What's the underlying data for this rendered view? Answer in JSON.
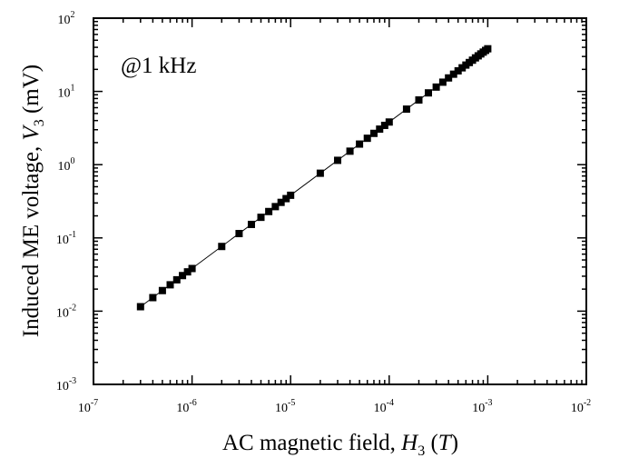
{
  "chart_data": {
    "type": "scatter",
    "annotation": "@1 kHz",
    "xlabel": "AC magnetic field, H3 (T)",
    "ylabel": "Induced ME voltage, V3 (mV)",
    "xscale": "log",
    "yscale": "log",
    "xlim": [
      1e-07,
      0.01
    ],
    "ylim": [
      0.001,
      100
    ],
    "x_ticks": [
      "10^-7",
      "10^-6",
      "10^-5",
      "10^-4",
      "10^-3",
      "10^-2"
    ],
    "y_ticks": [
      "10^-3",
      "10^-2",
      "10^-1",
      "10^0",
      "10^1",
      "10^2"
    ],
    "grid": false,
    "legend": "none",
    "marker": "square",
    "fit_line": true,
    "series": [
      {
        "x": [
          3e-07,
          4e-07,
          5e-07,
          6e-07,
          7e-07,
          8e-07,
          9e-07,
          1e-06,
          2e-06,
          3e-06,
          4e-06,
          5e-06,
          6e-06,
          7e-06,
          8e-06,
          9e-06,
          1e-05,
          2e-05,
          3e-05,
          4e-05,
          5e-05,
          6e-05,
          7e-05,
          8e-05,
          9e-05,
          0.0001,
          0.00015,
          0.0002,
          0.00025,
          0.0003,
          0.00035,
          0.0004,
          0.00045,
          0.0005,
          0.00055,
          0.0006,
          0.00065,
          0.0007,
          0.00075,
          0.0008,
          0.00085,
          0.0009,
          0.00095,
          0.001
        ],
        "y": [
          0.0115,
          0.0153,
          0.0191,
          0.0229,
          0.0268,
          0.0306,
          0.0344,
          0.0382,
          0.0764,
          0.1146,
          0.1528,
          0.191,
          0.2292,
          0.2674,
          0.3056,
          0.3438,
          0.382,
          0.764,
          1.146,
          1.528,
          1.91,
          2.292,
          2.674,
          3.056,
          3.438,
          3.82,
          5.73,
          7.64,
          9.55,
          11.46,
          13.37,
          15.28,
          17.19,
          19.1,
          21.0,
          22.9,
          24.8,
          26.7,
          28.7,
          30.6,
          32.5,
          34.4,
          36.3,
          38.2
        ]
      }
    ]
  }
}
